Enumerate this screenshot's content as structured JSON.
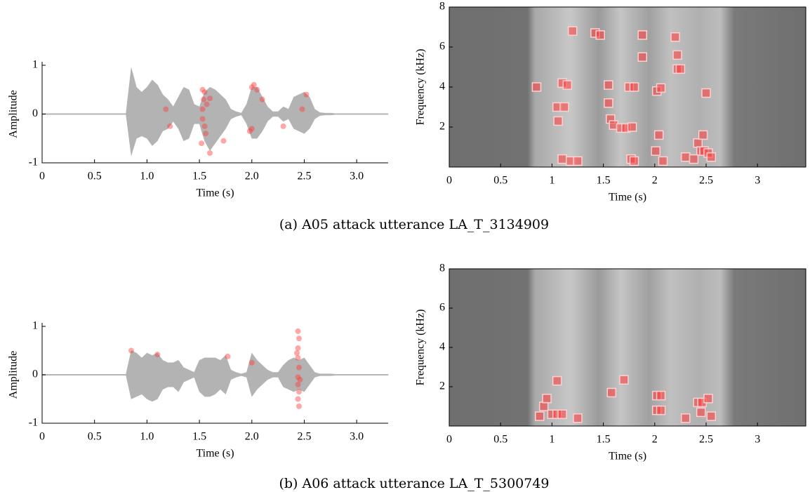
{
  "captions": [
    "(a) A05 attack utterance LA_T_3134909",
    "(b) A06 attack utterance LA_T_5300749"
  ],
  "chart_data": [
    {
      "type": "waveform",
      "xlabel": "Time (s)",
      "ylabel": "Amplitude",
      "color": "#b3b3b3",
      "xlim": [
        0,
        3.3
      ],
      "xticks": [
        0,
        0.5,
        {
          "value": 1,
          "label": "1.0"
        },
        1.5,
        {
          "value": 2,
          "label": "2.0"
        },
        2.5,
        {
          "value": 3,
          "label": "3.0"
        }
      ],
      "ylim": [
        -1,
        1
      ],
      "yticks": [
        -1,
        0,
        1
      ],
      "x": [
        0,
        0.75,
        0.8,
        0.85,
        0.9,
        0.95,
        1.0,
        1.05,
        1.1,
        1.15,
        1.2,
        1.25,
        1.3,
        1.35,
        1.4,
        1.45,
        1.5,
        1.55,
        1.6,
        1.65,
        1.7,
        1.75,
        1.8,
        1.85,
        1.9,
        1.95,
        2.0,
        2.05,
        2.1,
        2.15,
        2.2,
        2.25,
        2.3,
        2.35,
        2.4,
        2.45,
        2.5,
        2.55,
        2.6,
        2.65,
        2.7,
        2.75,
        2.8,
        2.85,
        3.3
      ],
      "upper": [
        0.01,
        0.01,
        0.01,
        0.95,
        0.55,
        0.45,
        0.55,
        0.7,
        0.6,
        0.4,
        0.3,
        0.15,
        0.35,
        0.55,
        0.5,
        0.2,
        0.15,
        0.45,
        0.55,
        0.5,
        0.4,
        0.3,
        0.1,
        0.05,
        0.02,
        0.2,
        0.55,
        0.55,
        0.35,
        0.15,
        0.05,
        0.05,
        0.15,
        0.1,
        0.35,
        0.4,
        0.45,
        0.35,
        0.1,
        0.03,
        0.02,
        0.02,
        0.01,
        0.01,
        0.01
      ],
      "lower": [
        -0.01,
        -0.01,
        -0.01,
        -0.85,
        -0.5,
        -0.45,
        -0.5,
        -0.65,
        -0.55,
        -0.35,
        -0.3,
        -0.15,
        -0.3,
        -0.55,
        -0.5,
        -0.2,
        -0.2,
        -0.55,
        -0.75,
        -0.6,
        -0.45,
        -0.3,
        -0.1,
        -0.05,
        -0.02,
        -0.2,
        -0.5,
        -0.5,
        -0.35,
        -0.15,
        -0.05,
        -0.05,
        -0.15,
        -0.1,
        -0.3,
        -0.35,
        -0.4,
        -0.3,
        -0.1,
        -0.03,
        -0.02,
        -0.02,
        -0.01,
        -0.01,
        -0.01
      ],
      "points": {
        "color": "#ff3b3b",
        "x": [
          1.53,
          1.54,
          1.53,
          1.53,
          1.55,
          1.56,
          1.57,
          1.55,
          1.6,
          1.6,
          1.73,
          1.52,
          2.0,
          2.02,
          2.05,
          2.0,
          1.98,
          2.1,
          2.3,
          2.52,
          2.48,
          1.22,
          1.18
        ],
        "y": [
          0.5,
          0.3,
          0.1,
          -0.1,
          -0.25,
          -0.4,
          0.2,
          0.45,
          -0.8,
          0.32,
          -0.55,
          -0.6,
          0.55,
          0.6,
          0.5,
          -0.3,
          -0.35,
          0.3,
          -0.25,
          0.4,
          0.1,
          -0.25,
          0.1
        ]
      }
    },
    {
      "type": "spectrogram",
      "xlabel": "Time (s)",
      "ylabel": "Frequency (kHz)",
      "xlim": [
        0,
        3.47
      ],
      "xticks": [
        0,
        0.5,
        1,
        1.5,
        2,
        2.5,
        3
      ],
      "ylim": [
        0,
        8
      ],
      "yticks": [
        2,
        4,
        6,
        8
      ],
      "points": {
        "color": "#ff3b3b",
        "x": [
          0.85,
          1.2,
          1.42,
          1.47,
          1.1,
          1.15,
          1.05,
          1.12,
          1.06,
          1.1,
          1.18,
          1.25,
          1.55,
          1.55,
          1.57,
          1.6,
          1.67,
          1.72,
          1.78,
          1.75,
          1.8,
          1.77,
          1.8,
          1.88,
          1.88,
          2.02,
          2.06,
          2.04,
          2.01,
          2.08,
          2.2,
          2.22,
          2.22,
          2.25,
          2.3,
          2.42,
          2.47,
          2.45,
          2.48,
          2.52,
          2.5,
          2.38,
          2.55
        ],
        "y": [
          4.0,
          6.8,
          6.7,
          6.6,
          4.2,
          4.1,
          3.0,
          3.0,
          2.3,
          0.4,
          0.3,
          0.3,
          4.1,
          3.2,
          2.4,
          2.1,
          1.95,
          1.95,
          2.0,
          4.0,
          4.0,
          0.4,
          0.3,
          6.6,
          5.5,
          3.8,
          3.95,
          1.6,
          0.8,
          0.3,
          6.5,
          5.6,
          4.9,
          4.9,
          0.5,
          1.2,
          1.6,
          0.8,
          0.8,
          0.7,
          3.7,
          0.4,
          0.5
        ]
      }
    },
    {
      "type": "waveform",
      "xlabel": "Time (s)",
      "ylabel": "Amplitude",
      "color": "#b3b3b3",
      "xlim": [
        0,
        3.3
      ],
      "xticks": [
        0,
        0.5,
        {
          "value": 1,
          "label": "1.0"
        },
        1.5,
        {
          "value": 2,
          "label": "2.0"
        },
        2.5,
        {
          "value": 3,
          "label": "3.0"
        }
      ],
      "ylim": [
        -1,
        1
      ],
      "yticks": [
        -1,
        0,
        1
      ],
      "x": [
        0,
        0.75,
        0.8,
        0.85,
        0.9,
        0.95,
        1.0,
        1.05,
        1.1,
        1.15,
        1.2,
        1.25,
        1.3,
        1.35,
        1.4,
        1.45,
        1.5,
        1.55,
        1.6,
        1.65,
        1.7,
        1.75,
        1.8,
        1.85,
        1.9,
        1.95,
        2.0,
        2.05,
        2.1,
        2.15,
        2.2,
        2.25,
        2.3,
        2.35,
        2.4,
        2.45,
        2.5,
        2.55,
        2.6,
        2.65,
        2.7,
        2.75,
        2.8,
        2.85,
        3.3
      ],
      "upper": [
        0.01,
        0.01,
        0.01,
        0.5,
        0.45,
        0.35,
        0.45,
        0.4,
        0.45,
        0.3,
        0.25,
        0.25,
        0.3,
        0.15,
        0.1,
        0.05,
        0.3,
        0.35,
        0.35,
        0.35,
        0.3,
        0.4,
        0.1,
        0.05,
        0.02,
        0.05,
        0.45,
        0.3,
        0.2,
        0.1,
        0.05,
        0.05,
        0.2,
        0.3,
        0.35,
        0.3,
        0.35,
        0.2,
        0.05,
        0.02,
        0.02,
        0.02,
        0.01,
        0.01,
        0.01
      ],
      "lower": [
        -0.01,
        -0.01,
        -0.01,
        -0.5,
        -0.45,
        -0.4,
        -0.5,
        -0.55,
        -0.5,
        -0.3,
        -0.25,
        -0.25,
        -0.35,
        -0.15,
        -0.1,
        -0.05,
        -0.35,
        -0.45,
        -0.45,
        -0.4,
        -0.3,
        -0.4,
        -0.1,
        -0.05,
        -0.02,
        -0.05,
        -0.45,
        -0.3,
        -0.2,
        -0.1,
        -0.05,
        -0.05,
        -0.25,
        -0.3,
        -0.35,
        -0.3,
        -0.35,
        -0.2,
        -0.05,
        -0.02,
        -0.02,
        -0.02,
        -0.01,
        -0.01,
        -0.01
      ],
      "points": {
        "color": "#ff3b3b",
        "x": [
          2.44,
          2.45,
          2.44,
          2.44,
          2.45,
          2.44,
          2.44,
          2.45,
          2.44,
          2.45,
          2.43,
          2.46,
          0.85,
          1.1,
          1.77,
          2.0
        ],
        "y": [
          0.9,
          0.75,
          0.55,
          0.35,
          0.15,
          -0.05,
          -0.2,
          -0.35,
          -0.5,
          -0.65,
          0.45,
          -0.1,
          0.5,
          0.42,
          0.38,
          0.25
        ]
      }
    },
    {
      "type": "spectrogram",
      "xlabel": "Time (s)",
      "ylabel": "Frequency (kHz)",
      "xlim": [
        0,
        3.47
      ],
      "xticks": [
        0,
        0.5,
        1,
        1.5,
        2,
        2.5,
        3
      ],
      "ylim": [
        0,
        8
      ],
      "yticks": [
        2,
        4,
        6,
        8
      ],
      "points": {
        "color": "#ff3b3b",
        "x": [
          0.88,
          0.92,
          0.95,
          1.0,
          1.05,
          1.1,
          1.05,
          1.25,
          1.58,
          1.7,
          2.02,
          2.06,
          2.02,
          2.06,
          2.3,
          2.42,
          2.46,
          2.45,
          2.52,
          2.55
        ],
        "y": [
          0.5,
          1.0,
          1.4,
          0.6,
          0.6,
          0.6,
          2.3,
          0.4,
          1.7,
          2.35,
          1.55,
          1.55,
          0.8,
          0.8,
          0.4,
          1.2,
          1.2,
          0.7,
          1.4,
          0.5
        ]
      }
    }
  ]
}
